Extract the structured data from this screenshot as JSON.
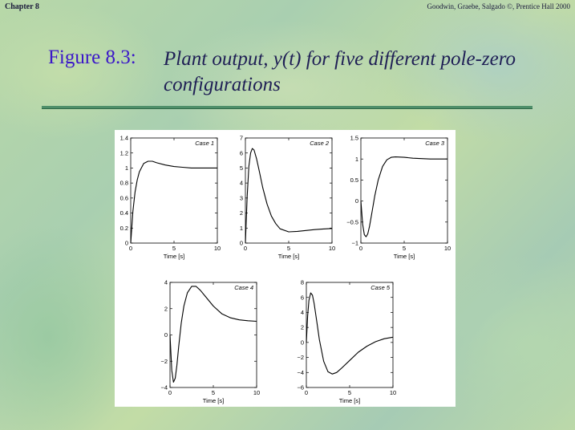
{
  "header": {
    "chapter": "Chapter 8",
    "credit": "Goodwin, Graebe, Salgado ©, Prentice Hall 2000"
  },
  "slide": {
    "figure_label": "Figure 8.3:",
    "title": "Plant output, y(t) for five different pole-zero configurations"
  },
  "chart_data": [
    {
      "type": "line",
      "title": "Case 1",
      "xlabel": "Time [s]",
      "ylabel": "",
      "xlim": [
        0,
        10
      ],
      "ylim": [
        0,
        1.4
      ],
      "xticks": [
        0,
        5,
        10
      ],
      "yticks": [
        0,
        0.2,
        0.4,
        0.6,
        0.8,
        1,
        1.2,
        1.4
      ],
      "series": [
        {
          "x": [
            0,
            0.25,
            0.5,
            0.75,
            1,
            1.5,
            2,
            2.5,
            3,
            4,
            5,
            6,
            7,
            8,
            9,
            10
          ],
          "y": [
            0,
            0.42,
            0.68,
            0.84,
            0.95,
            1.06,
            1.09,
            1.09,
            1.07,
            1.04,
            1.02,
            1.01,
            1.0,
            1.0,
            1.0,
            1.0
          ]
        }
      ]
    },
    {
      "type": "line",
      "title": "Case 2",
      "xlabel": "Time [s]",
      "ylabel": "",
      "xlim": [
        0,
        10
      ],
      "ylim": [
        0,
        7
      ],
      "xticks": [
        0,
        5,
        10
      ],
      "yticks": [
        0,
        1,
        2,
        3,
        4,
        5,
        6,
        7
      ],
      "series": [
        {
          "x": [
            0,
            0.2,
            0.4,
            0.6,
            0.8,
            1,
            1.3,
            1.6,
            2,
            2.5,
            3,
            3.5,
            4,
            5,
            6,
            7,
            8,
            9,
            10
          ],
          "y": [
            0,
            3.1,
            5.1,
            6.0,
            6.3,
            6.2,
            5.6,
            4.8,
            3.7,
            2.6,
            1.8,
            1.3,
            0.95,
            0.75,
            0.78,
            0.84,
            0.9,
            0.94,
            0.97
          ]
        }
      ]
    },
    {
      "type": "line",
      "title": "Case 3",
      "xlabel": "Time [s]",
      "ylabel": "",
      "xlim": [
        0,
        10
      ],
      "ylim": [
        -1,
        1.5
      ],
      "xticks": [
        0,
        5,
        10
      ],
      "yticks": [
        -1,
        -0.5,
        0,
        0.5,
        1,
        1.5
      ],
      "series": [
        {
          "x": [
            0,
            0.2,
            0.4,
            0.6,
            0.8,
            1,
            1.3,
            1.6,
            2,
            2.5,
            3,
            3.5,
            4,
            5,
            6,
            7,
            8,
            9,
            10
          ],
          "y": [
            0,
            -0.55,
            -0.8,
            -0.85,
            -0.78,
            -0.6,
            -0.25,
            0.12,
            0.5,
            0.82,
            0.98,
            1.04,
            1.05,
            1.04,
            1.02,
            1.01,
            1.0,
            1.0,
            1.0
          ]
        }
      ]
    },
    {
      "type": "line",
      "title": "Case 4",
      "xlabel": "Time [s]",
      "ylabel": "",
      "xlim": [
        0,
        10
      ],
      "ylim": [
        -4,
        4
      ],
      "xticks": [
        0,
        5,
        10
      ],
      "yticks": [
        -4,
        -2,
        0,
        2,
        4
      ],
      "series": [
        {
          "x": [
            0,
            0.2,
            0.4,
            0.6,
            0.8,
            1,
            1.3,
            1.6,
            2,
            2.5,
            3,
            3.5,
            4,
            5,
            6,
            7,
            8,
            9,
            10
          ],
          "y": [
            0,
            -2.7,
            -3.6,
            -3.3,
            -2.3,
            -0.9,
            0.9,
            2.2,
            3.2,
            3.7,
            3.7,
            3.4,
            3.0,
            2.2,
            1.6,
            1.3,
            1.15,
            1.08,
            1.04
          ]
        }
      ]
    },
    {
      "type": "line",
      "title": "Case 5",
      "xlabel": "Time [s]",
      "ylabel": "",
      "xlim": [
        0,
        10
      ],
      "ylim": [
        -6,
        8
      ],
      "xticks": [
        0,
        5,
        10
      ],
      "yticks": [
        -6,
        -4,
        -2,
        0,
        2,
        4,
        6,
        8
      ],
      "series": [
        {
          "x": [
            0,
            0.15,
            0.3,
            0.5,
            0.7,
            0.9,
            1.2,
            1.5,
            2,
            2.5,
            3,
            3.5,
            4,
            5,
            6,
            7,
            8,
            9,
            10
          ],
          "y": [
            0,
            3.5,
            5.6,
            6.6,
            6.3,
            5.2,
            2.8,
            0.4,
            -2.5,
            -3.9,
            -4.2,
            -4.0,
            -3.5,
            -2.4,
            -1.3,
            -0.5,
            0.1,
            0.5,
            0.7
          ]
        }
      ]
    }
  ]
}
